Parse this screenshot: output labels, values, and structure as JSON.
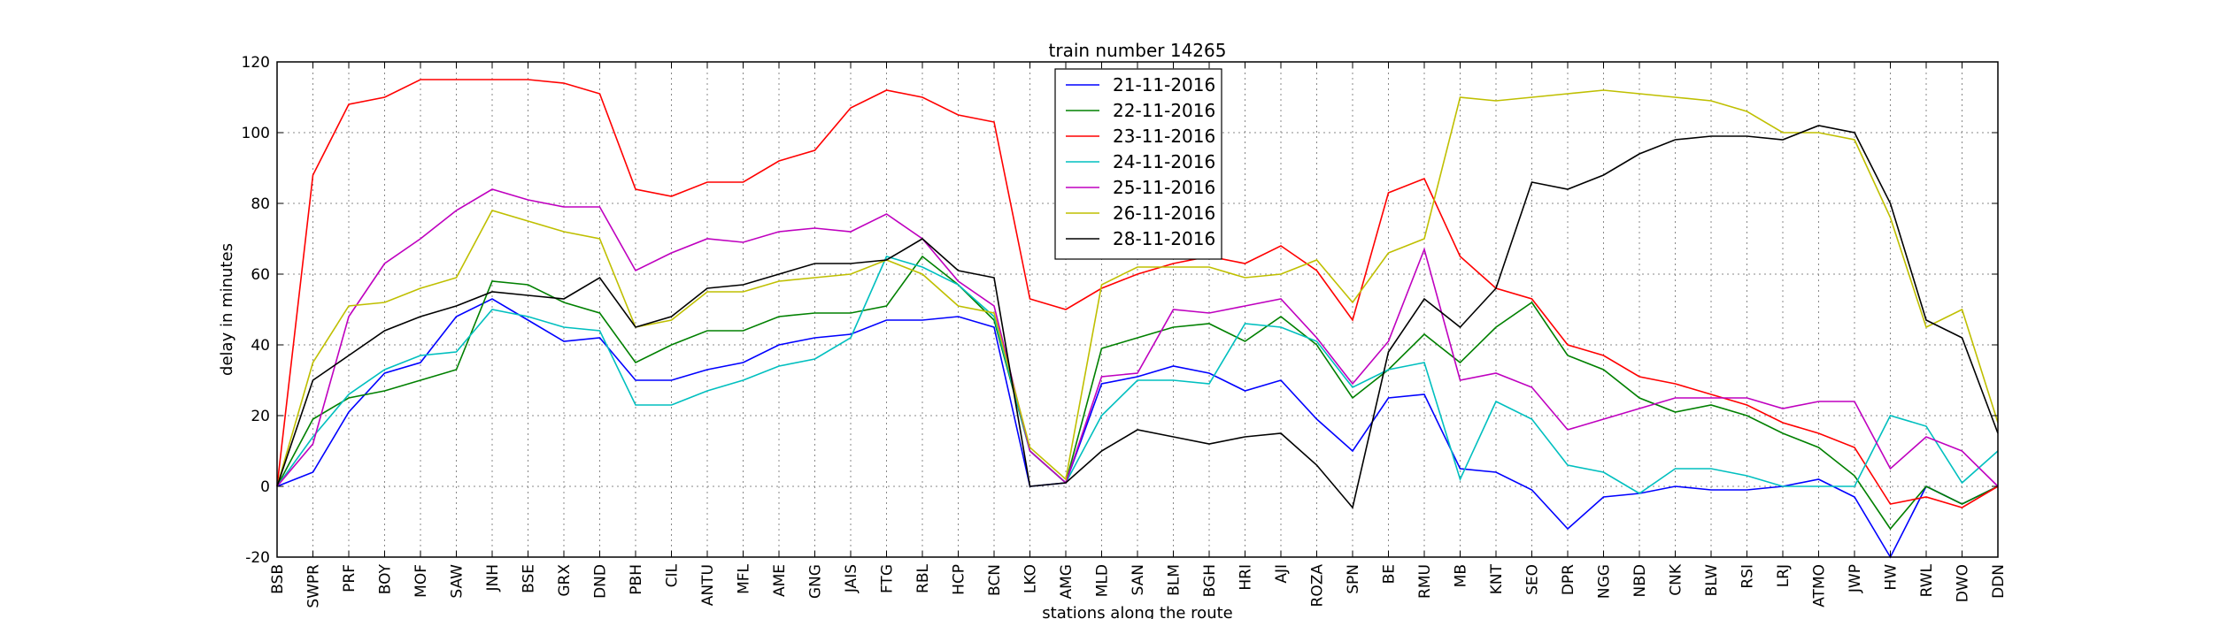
{
  "chart_data": {
    "type": "line",
    "title": "train number 14265",
    "xlabel": "stations along the route",
    "ylabel": "delay in minutes",
    "ylim": [
      -20,
      120
    ],
    "yticks": [
      -20,
      0,
      20,
      40,
      60,
      80,
      100,
      120
    ],
    "grid": true,
    "legend_position": "top-center",
    "categories": [
      "BSB",
      "SWPR",
      "PRF",
      "BOY",
      "MOF",
      "SAW",
      "JNH",
      "BSE",
      "GRX",
      "DND",
      "PBH",
      "CIL",
      "ANTU",
      "MFL",
      "AME",
      "GNG",
      "JAIS",
      "FTG",
      "RBL",
      "HCP",
      "BCN",
      "LKO",
      "AMG",
      "MLD",
      "SAN",
      "BLM",
      "BGH",
      "HRI",
      "AJI",
      "ROZA",
      "SPN",
      "BE",
      "RMU",
      "MB",
      "KNT",
      "SEO",
      "DPR",
      "NGG",
      "NBD",
      "CNK",
      "BLW",
      "RSI",
      "LRJ",
      "ATMO",
      "JWP",
      "HW",
      "RWL",
      "DWO",
      "DDN"
    ],
    "series": [
      {
        "name": "21-11-2016",
        "color": "#0000ff",
        "values": [
          0,
          4,
          21,
          32,
          35,
          48,
          53,
          47,
          41,
          42,
          30,
          30,
          33,
          35,
          40,
          42,
          43,
          47,
          47,
          48,
          45,
          0,
          1,
          29,
          31,
          34,
          32,
          27,
          30,
          19,
          10,
          25,
          26,
          5,
          4,
          -1,
          -12,
          -3,
          -2,
          0,
          -1,
          -1,
          0,
          2,
          -3,
          -20,
          0,
          -5,
          0
        ]
      },
      {
        "name": "22-11-2016",
        "color": "#008000",
        "values": [
          0,
          19,
          25,
          27,
          30,
          33,
          58,
          57,
          52,
          49,
          35,
          40,
          44,
          44,
          48,
          49,
          49,
          51,
          65,
          57,
          47,
          10,
          1,
          39,
          42,
          45,
          46,
          41,
          48,
          40,
          25,
          33,
          43,
          35,
          45,
          52,
          37,
          33,
          25,
          21,
          23,
          20,
          15,
          11,
          3,
          -12,
          0,
          -5,
          0
        ]
      },
      {
        "name": "23-11-2016",
        "color": "#ff0000",
        "values": [
          0,
          88,
          108,
          110,
          115,
          115,
          115,
          115,
          114,
          111,
          84,
          82,
          86,
          86,
          92,
          95,
          107,
          112,
          110,
          105,
          103,
          53,
          50,
          56,
          60,
          63,
          65,
          63,
          68,
          61,
          47,
          83,
          87,
          65,
          56,
          53,
          40,
          37,
          31,
          29,
          26,
          23,
          18,
          15,
          11,
          -5,
          -3,
          -6,
          0
        ]
      },
      {
        "name": "24-11-2016",
        "color": "#00bfbf",
        "values": [
          0,
          14,
          26,
          33,
          37,
          38,
          50,
          48,
          45,
          44,
          23,
          23,
          27,
          30,
          34,
          36,
          42,
          65,
          62,
          57,
          48,
          10,
          1,
          20,
          30,
          30,
          29,
          46,
          45,
          41,
          28,
          33,
          35,
          2,
          24,
          19,
          6,
          4,
          -2,
          5,
          5,
          3,
          0,
          0,
          0,
          20,
          17,
          1,
          10
        ]
      },
      {
        "name": "25-11-2016",
        "color": "#bf00bf",
        "values": [
          0,
          12,
          48,
          63,
          70,
          78,
          84,
          81,
          79,
          79,
          61,
          66,
          70,
          69,
          72,
          73,
          72,
          77,
          70,
          58,
          51,
          10,
          1,
          31,
          32,
          50,
          49,
          51,
          53,
          42,
          29,
          41,
          67,
          30,
          32,
          28,
          16,
          19,
          22,
          25,
          25,
          25,
          22,
          24,
          24,
          5,
          14,
          10,
          0
        ]
      },
      {
        "name": "26-11-2016",
        "color": "#bfbf00",
        "values": [
          0,
          35,
          51,
          52,
          56,
          59,
          78,
          75,
          72,
          70,
          45,
          47,
          55,
          55,
          58,
          59,
          60,
          64,
          60,
          51,
          49,
          11,
          2,
          57,
          62,
          62,
          62,
          59,
          60,
          64,
          52,
          66,
          70,
          110,
          109,
          110,
          111,
          112,
          111,
          110,
          109,
          106,
          100,
          100,
          98,
          76,
          45,
          50,
          18
        ]
      },
      {
        "name": "28-11-2016",
        "color": "#000000",
        "values": [
          0,
          30,
          37,
          44,
          48,
          51,
          55,
          54,
          53,
          59,
          45,
          48,
          56,
          57,
          60,
          63,
          63,
          64,
          70,
          61,
          59,
          0,
          1,
          10,
          16,
          14,
          12,
          14,
          15,
          6,
          -6,
          38,
          53,
          45,
          56,
          86,
          84,
          88,
          94,
          98,
          99,
          99,
          98,
          102,
          100,
          80,
          47,
          42,
          15
        ]
      }
    ]
  }
}
